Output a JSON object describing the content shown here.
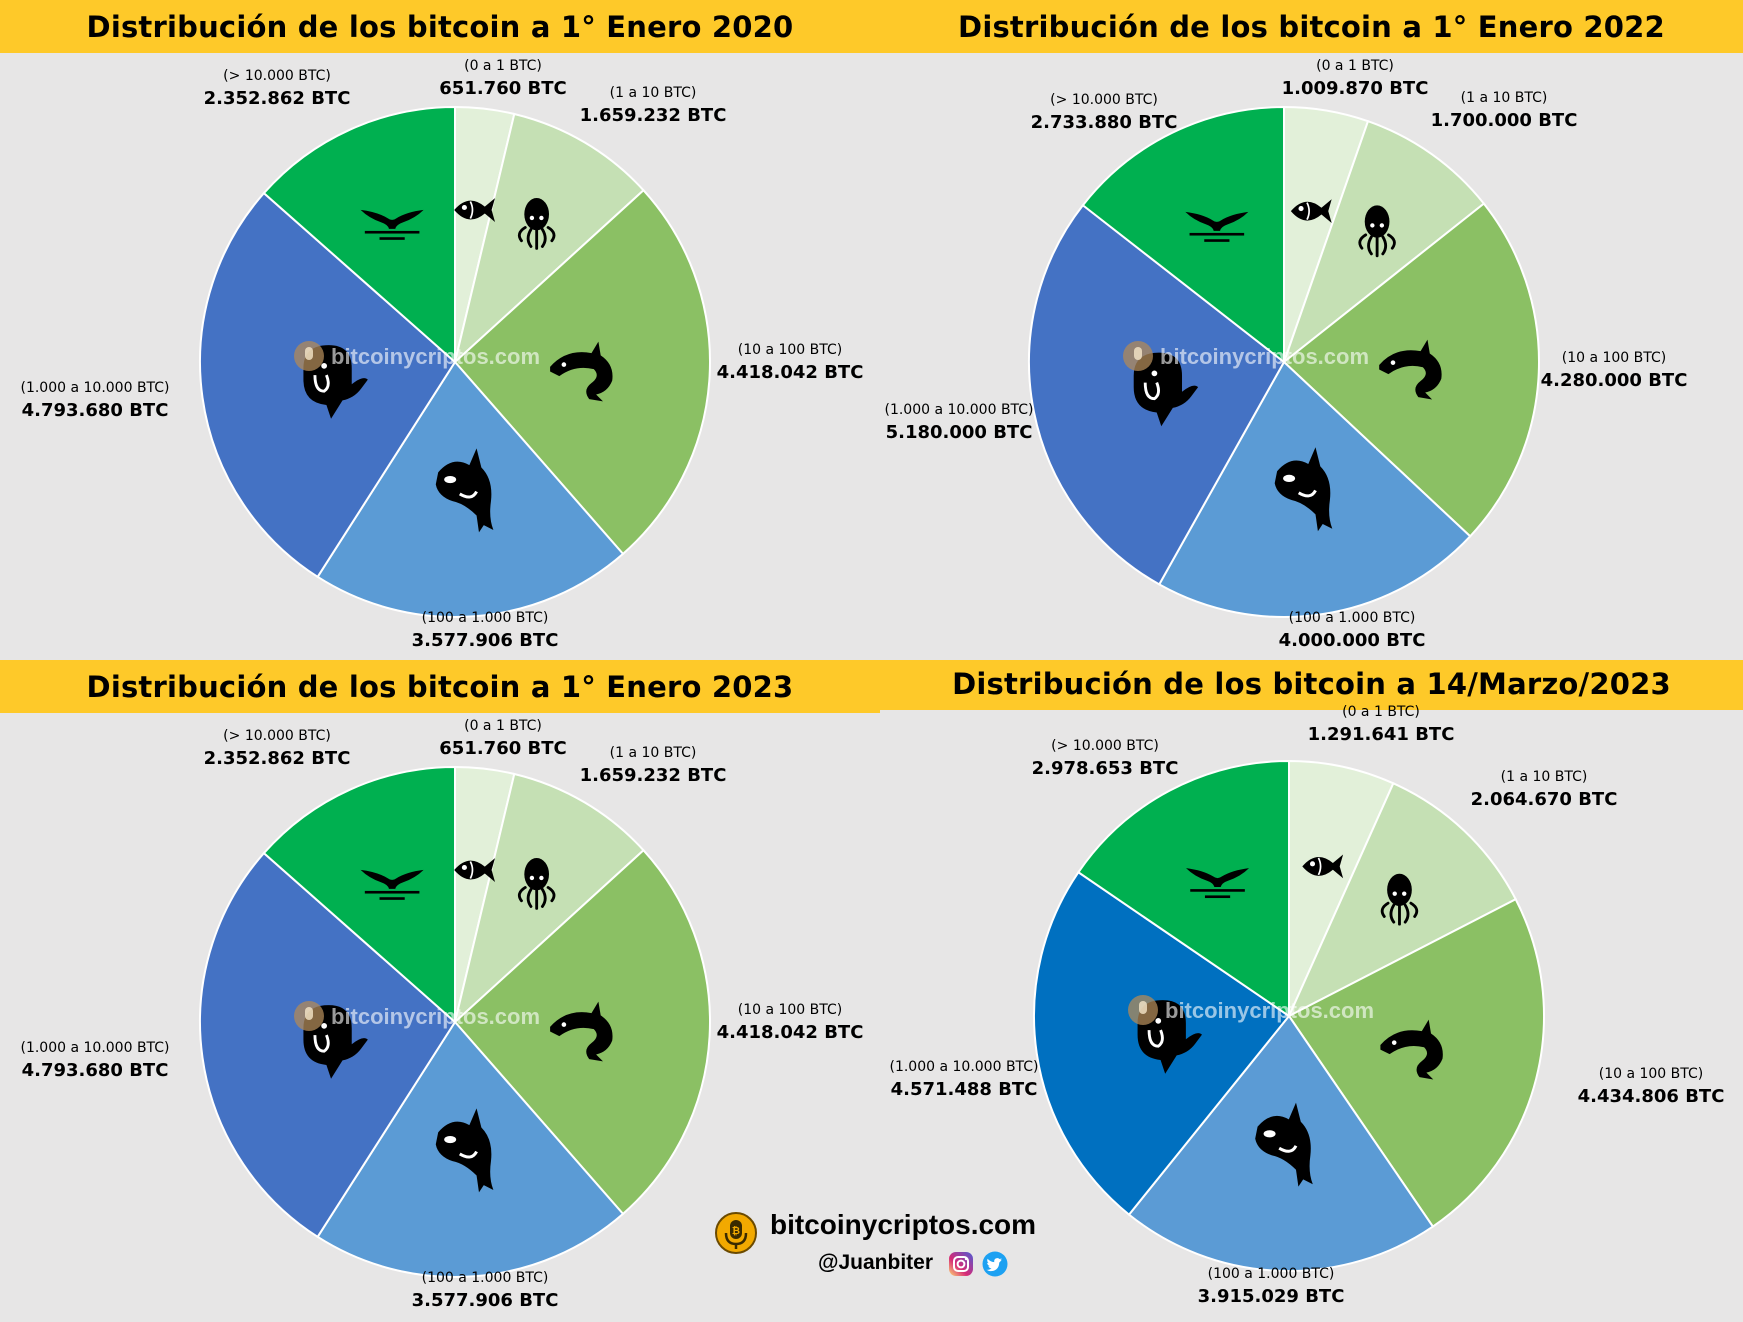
{
  "colors": {
    "banner": "#fec929",
    "background": "#e7e6e6",
    "segments": [
      "#e2f0d9",
      "#c5e0b4",
      "#8bc064",
      "#5b9bd5",
      "#4472c4",
      "#00b050"
    ],
    "segments_march": [
      "#e2f0d9",
      "#c5e0b4",
      "#8bc064",
      "#5b9bd5",
      "#0070c0",
      "#00b050"
    ]
  },
  "watermark": "bitcoinycriptos.com",
  "icons": [
    "fish-icon",
    "octopus-icon",
    "dolphin-icon",
    "orca-icon",
    "whale-icon",
    "whale-tail-icon"
  ],
  "footer": {
    "site": "bitcoinycriptos.com",
    "handle": "@Juanbiter"
  },
  "chart_data": [
    {
      "type": "pie",
      "title": "Distribución de los bitcoin a 1° Enero 2020",
      "categories": [
        "(0 a 1 BTC)",
        "(1 a 10 BTC)",
        "(10 a 100 BTC)",
        "(100 a 1.000 BTC)",
        "(1.000 a 10.000 BTC)",
        "(> 10.000 BTC)"
      ],
      "values": [
        651760,
        1659232,
        4418042,
        3577906,
        4793680,
        2352862
      ],
      "value_labels": [
        "651.760 BTC",
        "1.659.232 BTC",
        "4.418.042 BTC",
        "3.577.906 BTC",
        "4.793.680 BTC",
        "2.352.862 BTC"
      ]
    },
    {
      "type": "pie",
      "title": "Distribución de los bitcoin a 1° Enero 2022",
      "categories": [
        "(0 a 1 BTC)",
        "(1 a 10 BTC)",
        "(10 a 100 BTC)",
        "(100 a 1.000 BTC)",
        "(1.000 a 10.000 BTC)",
        "(> 10.000 BTC)"
      ],
      "values": [
        1009870,
        1700000,
        4280000,
        4000000,
        5180000,
        2733880
      ],
      "value_labels": [
        "1.009.870 BTC",
        "1.700.000 BTC",
        "4.280.000 BTC",
        "4.000.000 BTC",
        "5.180.000 BTC",
        "2.733.880 BTC"
      ]
    },
    {
      "type": "pie",
      "title": "Distribución de los bitcoin a 1° Enero 2023",
      "categories": [
        "(0 a 1 BTC)",
        "(1 a 10 BTC)",
        "(10 a 100 BTC)",
        "(100 a 1.000 BTC)",
        "(1.000 a 10.000 BTC)",
        "(> 10.000 BTC)"
      ],
      "values": [
        651760,
        1659232,
        4418042,
        3577906,
        4793680,
        2352862
      ],
      "value_labels": [
        "651.760 BTC",
        "1.659.232 BTC",
        "4.418.042 BTC",
        "3.577.906 BTC",
        "4.793.680 BTC",
        "2.352.862 BTC"
      ]
    },
    {
      "type": "pie",
      "title": "Distribución de los bitcoin a 14/Marzo/2023",
      "categories": [
        "(0 a 1 BTC)",
        "(1 a 10 BTC)",
        "(10 a 100 BTC)",
        "(100 a 1.000 BTC)",
        "(1.000 a 10.000 BTC)",
        "(> 10.000 BTC)"
      ],
      "values": [
        1291641,
        2064670,
        4434806,
        3915029,
        4571488,
        2978653
      ],
      "value_labels": [
        "1.291.641 BTC",
        "2.064.670 BTC",
        "4.434.806 BTC",
        "3.915.029 BTC",
        "4.571.488 BTC",
        "2.978.653 BTC"
      ]
    }
  ]
}
